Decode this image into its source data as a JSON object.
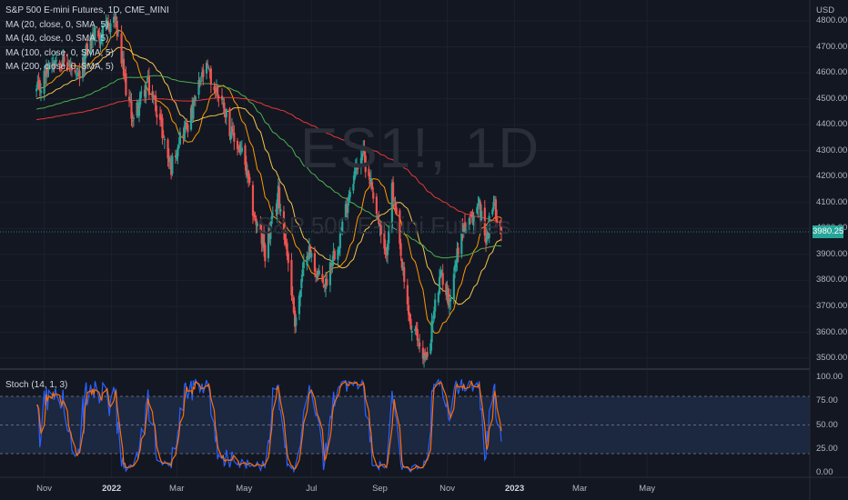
{
  "legend": {
    "title": "S&P 500 E-mini Futures, 1D, CME_MINI",
    "ma20": "MA (20, close, 0, SMA, 5)",
    "ma40": "MA (40, close, 0, SMA, 5)",
    "ma100": "MA (100, close, 0, SMA, 5)",
    "ma200": "MA (200, close, 0, SMA, 5)"
  },
  "watermark": {
    "symbol": "ES1!, 1D",
    "name": "S&P 500 E-mini Futures"
  },
  "currency": "USD",
  "last_price": "3980.25",
  "stoch_label": "Stoch (14, 1, 3)",
  "price_axis": [
    "4800.00",
    "4700.00",
    "4600.00",
    "4500.00",
    "4400.00",
    "4300.00",
    "4200.00",
    "4100.00",
    "4000.00",
    "3900.00",
    "3800.00",
    "3700.00",
    "3600.00",
    "3500.00"
  ],
  "stoch_axis": [
    "100.00",
    "75.00",
    "50.00",
    "25.00",
    "0.00"
  ],
  "time_axis": [
    "Nov",
    "2022",
    "Mar",
    "May",
    "Jul",
    "Sep",
    "Nov",
    "2023",
    "Mar",
    "May"
  ],
  "colors": {
    "up": "#26a69a",
    "down": "#ef5350",
    "ma20": "#ff9800",
    "ma40": "#f7c44c",
    "ma100": "#4caf50",
    "ma200": "#e53935",
    "k": "#2962ff",
    "d": "#ff6d00",
    "band": "#1e2a45"
  },
  "chart_data": {
    "type": "candlestick",
    "symbol": "S&P 500 E-mini Futures",
    "interval": "1D",
    "ylim": [
      3450,
      4820
    ],
    "x_ticks": [
      "Nov",
      "2022",
      "Mar",
      "May",
      "Jul",
      "Sep",
      "Nov",
      "2023",
      "Mar",
      "May"
    ],
    "last_price": 3980.25,
    "close_anchors": [
      {
        "date": "2021-10-25",
        "close": 4540
      },
      {
        "date": "2021-11-15",
        "close": 4680
      },
      {
        "date": "2021-11-30",
        "close": 4560
      },
      {
        "date": "2021-12-10",
        "close": 4700
      },
      {
        "date": "2021-12-27",
        "close": 4780
      },
      {
        "date": "2022-01-04",
        "close": 4790
      },
      {
        "date": "2022-01-21",
        "close": 4400
      },
      {
        "date": "2022-02-02",
        "close": 4580
      },
      {
        "date": "2022-02-24",
        "close": 4250
      },
      {
        "date": "2022-03-29",
        "close": 4620
      },
      {
        "date": "2022-04-28",
        "close": 4290
      },
      {
        "date": "2022-05-20",
        "close": 3890
      },
      {
        "date": "2022-06-01",
        "close": 4150
      },
      {
        "date": "2022-06-16",
        "close": 3660
      },
      {
        "date": "2022-06-27",
        "close": 3910
      },
      {
        "date": "2022-07-14",
        "close": 3780
      },
      {
        "date": "2022-08-16",
        "close": 4320
      },
      {
        "date": "2022-09-06",
        "close": 3900
      },
      {
        "date": "2022-09-12",
        "close": 4130
      },
      {
        "date": "2022-09-30",
        "close": 3590
      },
      {
        "date": "2022-10-13",
        "close": 3510
      },
      {
        "date": "2022-10-27",
        "close": 3820
      },
      {
        "date": "2022-11-03",
        "close": 3740
      },
      {
        "date": "2022-11-15",
        "close": 4000
      },
      {
        "date": "2022-11-30",
        "close": 4080
      },
      {
        "date": "2022-12-05",
        "close": 3960
      },
      {
        "date": "2022-12-13",
        "close": 4110
      },
      {
        "date": "2022-12-20",
        "close": 3980
      }
    ],
    "series": [
      {
        "name": "MA (20, close, 0, SMA, 5)",
        "period": 20
      },
      {
        "name": "MA (40, close, 0, SMA, 5)",
        "period": 40
      },
      {
        "name": "MA (100, close, 0, SMA, 5)",
        "period": 100
      },
      {
        "name": "MA (200, close, 0, SMA, 5)",
        "period": 200
      }
    ],
    "stochastic": {
      "name": "Stoch (14, 1, 3)",
      "k_period": 14,
      "smooth": 1,
      "d_period": 3,
      "ylim": [
        0,
        100
      ],
      "bands": [
        20,
        80
      ]
    }
  }
}
